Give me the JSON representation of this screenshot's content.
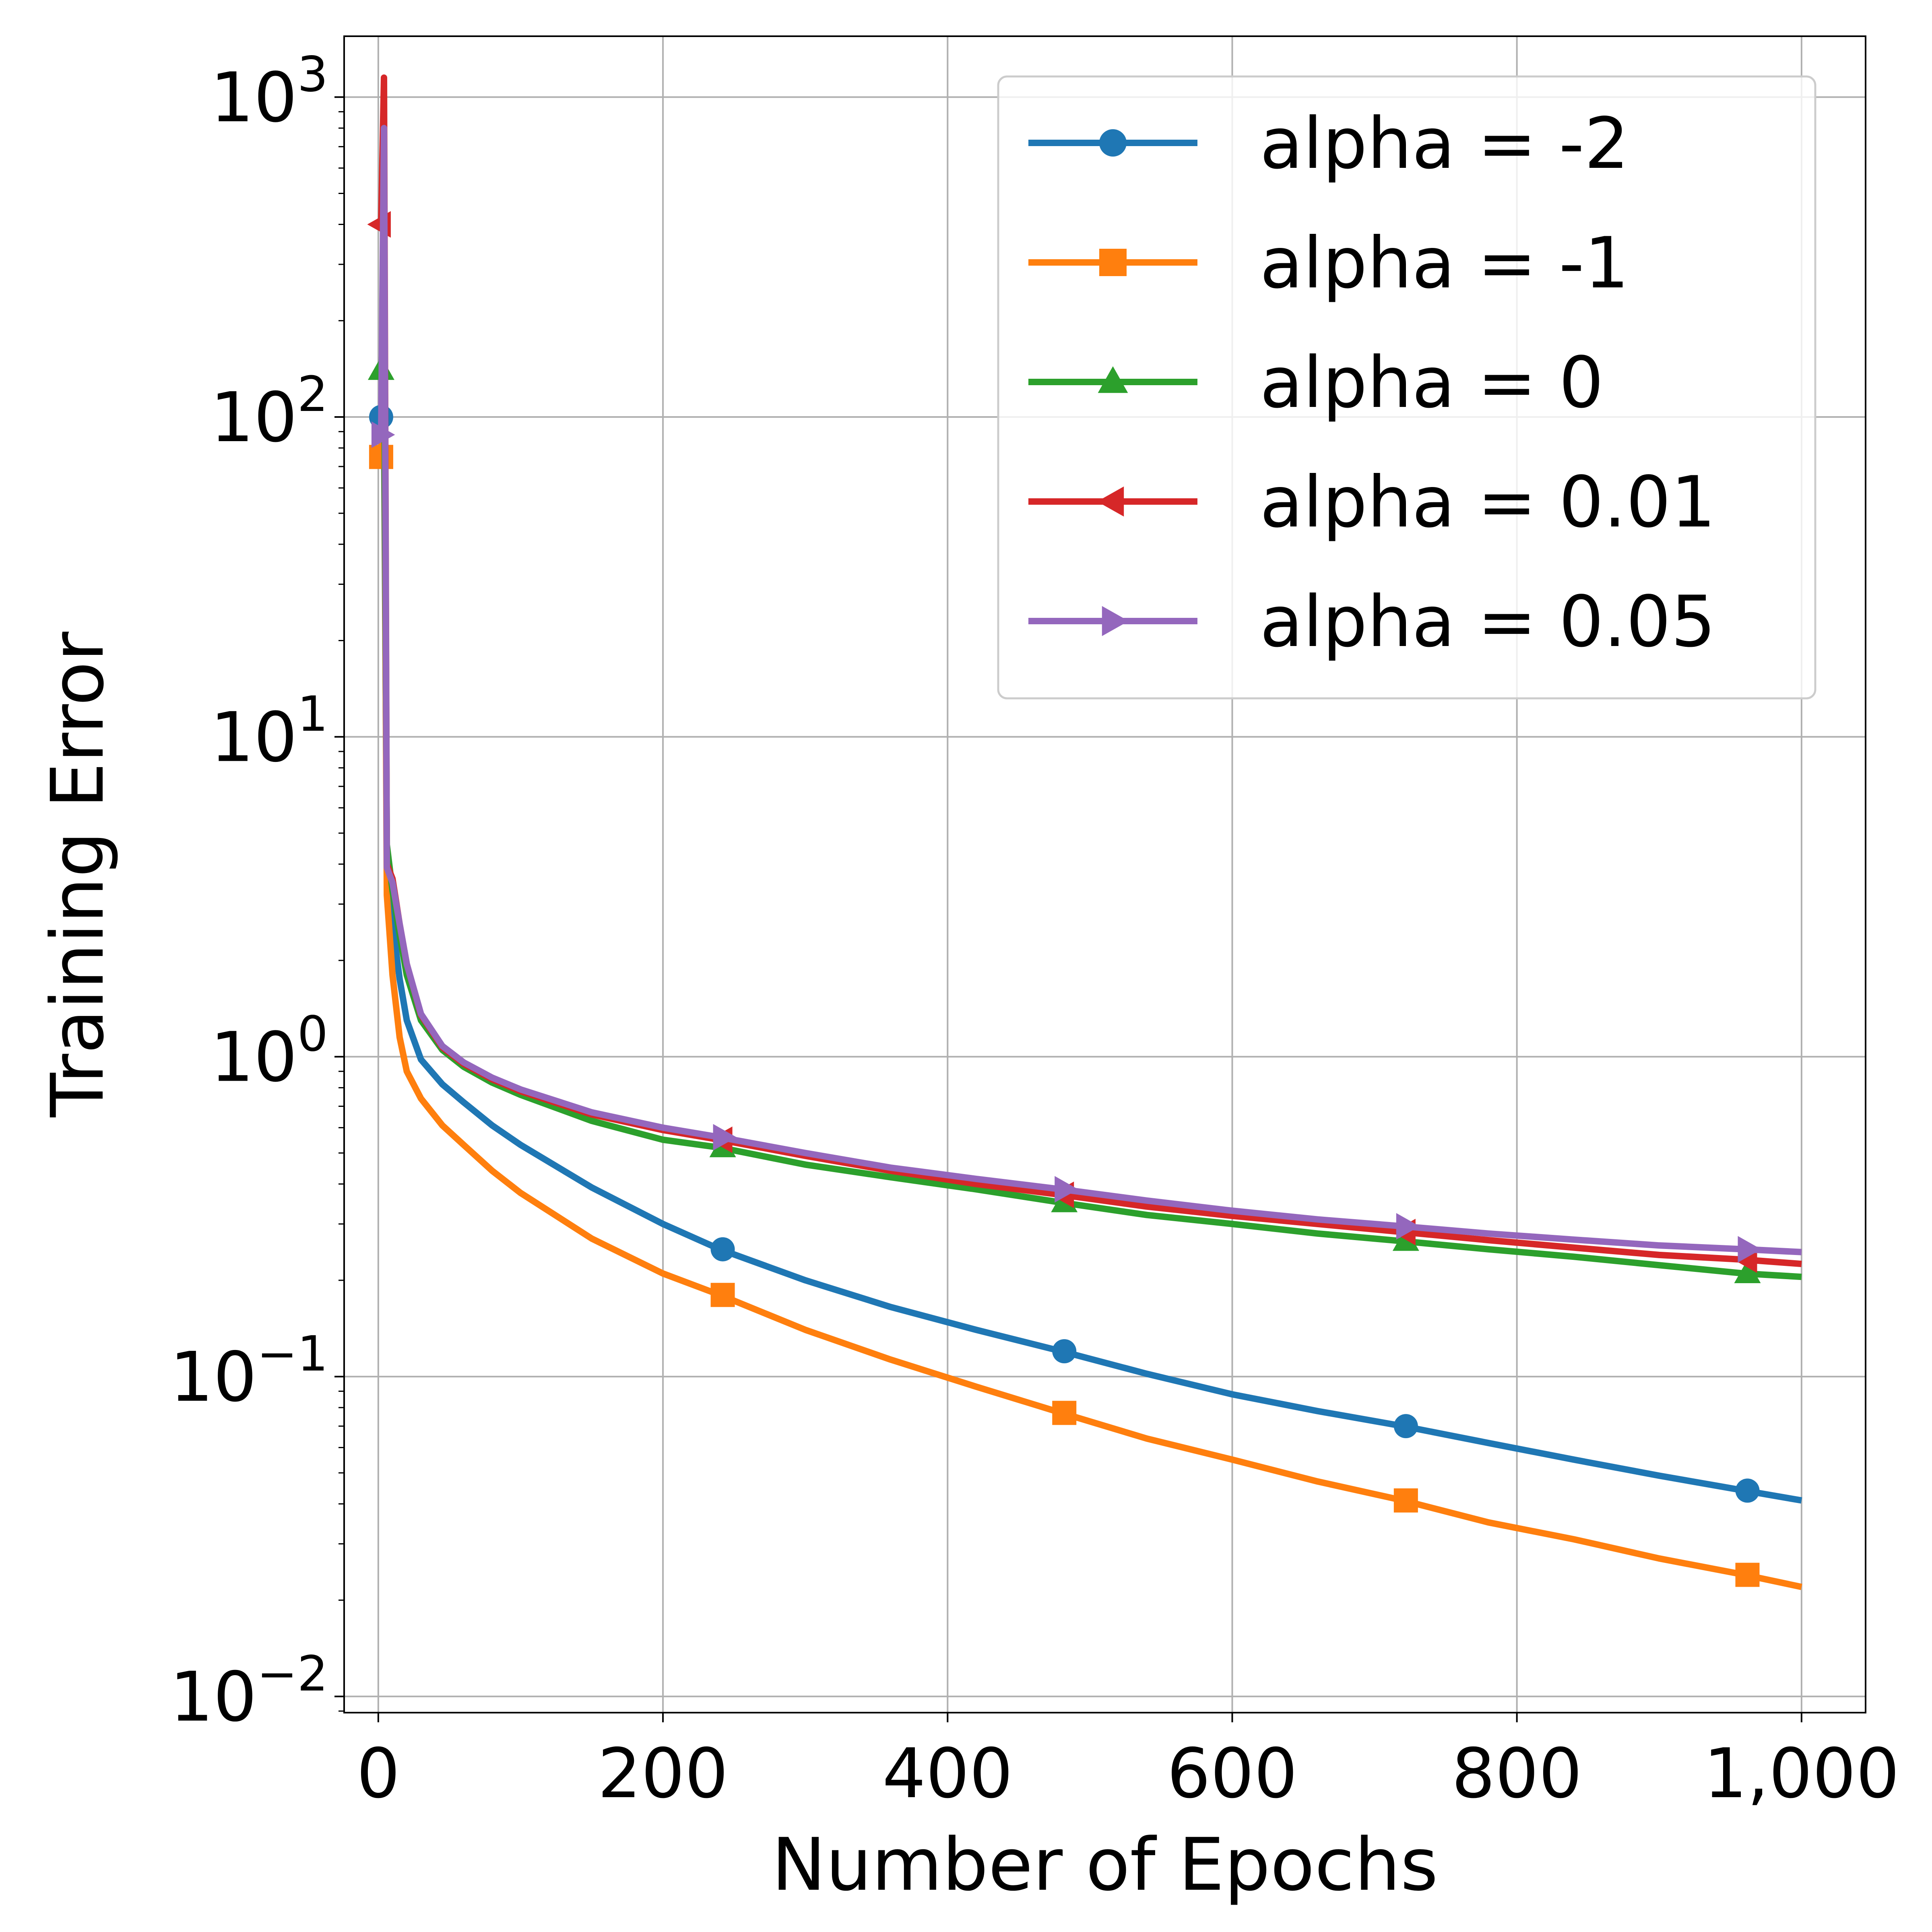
{
  "chart_data": {
    "type": "line",
    "title": "",
    "xlabel": "Number of Epochs",
    "ylabel": "Training Error",
    "yscale": "log",
    "xlim": [
      -24,
      1045
    ],
    "ylim": [
      0.0089,
      1550
    ],
    "xticks": [
      0,
      200,
      400,
      600,
      800,
      1000
    ],
    "xtick_labels": [
      "0",
      "200",
      "400",
      "600",
      "800",
      "1,000"
    ],
    "yticks": [
      0.01,
      0.1,
      1,
      10,
      100,
      1000
    ],
    "ytick_bases": [
      "10",
      "10",
      "10",
      "10",
      "10",
      "10"
    ],
    "ytick_exponents": [
      "−2",
      "−1",
      "0",
      "1",
      "2",
      "3"
    ],
    "grid": true,
    "legend_position": "top-right",
    "series": [
      {
        "name": "alpha = -2",
        "color": "#1f77b4",
        "marker": "circle",
        "x": [
          0,
          2,
          4,
          6,
          10,
          15,
          20,
          30,
          45,
          60,
          80,
          100,
          150,
          200,
          240,
          300,
          360,
          420,
          480,
          540,
          600,
          660,
          720,
          780,
          840,
          900,
          960,
          1000
        ],
        "y": [
          100,
          100,
          92,
          4.4,
          2.6,
          1.75,
          1.3,
          0.98,
          0.82,
          0.72,
          0.61,
          0.53,
          0.39,
          0.3,
          0.25,
          0.2,
          0.165,
          0.14,
          0.12,
          0.102,
          0.088,
          0.078,
          0.07,
          0.062,
          0.055,
          0.049,
          0.044,
          0.041
        ],
        "markers_x": [
          2,
          242,
          482,
          722,
          962
        ],
        "markers_y": [
          100,
          0.25,
          0.12,
          0.07,
          0.044
        ]
      },
      {
        "name": "alpha = -1",
        "color": "#ff7f0e",
        "marker": "square",
        "x": [
          0,
          2,
          4,
          6,
          10,
          15,
          20,
          30,
          45,
          60,
          80,
          100,
          150,
          200,
          240,
          300,
          360,
          420,
          480,
          540,
          600,
          660,
          720,
          780,
          840,
          900,
          960,
          1000
        ],
        "y": [
          75,
          75,
          150,
          3.2,
          1.8,
          1.15,
          0.9,
          0.74,
          0.61,
          0.53,
          0.44,
          0.375,
          0.27,
          0.21,
          0.18,
          0.14,
          0.113,
          0.093,
          0.077,
          0.064,
          0.055,
          0.047,
          0.041,
          0.035,
          0.031,
          0.027,
          0.024,
          0.022
        ],
        "markers_x": [
          2,
          242,
          482,
          722,
          962
        ],
        "markers_y": [
          75,
          0.18,
          0.077,
          0.041,
          0.024
        ]
      },
      {
        "name": "alpha = 0",
        "color": "#2ca02c",
        "marker": "triangle-up",
        "x": [
          0,
          2,
          4,
          6,
          10,
          15,
          20,
          30,
          45,
          60,
          80,
          100,
          150,
          200,
          240,
          300,
          360,
          420,
          480,
          540,
          600,
          660,
          720,
          780,
          840,
          900,
          960,
          1000
        ],
        "y": [
          140,
          140,
          200,
          4.6,
          3.3,
          2.4,
          1.8,
          1.3,
          1.05,
          0.93,
          0.83,
          0.76,
          0.63,
          0.55,
          0.52,
          0.46,
          0.42,
          0.385,
          0.35,
          0.32,
          0.3,
          0.28,
          0.265,
          0.25,
          0.237,
          0.223,
          0.21,
          0.205
        ],
        "markers_x": [
          2,
          242,
          482,
          722,
          962
        ],
        "markers_y": [
          140,
          0.52,
          0.35,
          0.265,
          0.21
        ]
      },
      {
        "name": "alpha = 0.01",
        "color": "#d62728",
        "marker": "triangle-left",
        "x": [
          0,
          2,
          4,
          6,
          10,
          15,
          20,
          30,
          45,
          60,
          80,
          100,
          150,
          200,
          240,
          300,
          360,
          420,
          480,
          540,
          600,
          660,
          720,
          780,
          840,
          900,
          960,
          1000
        ],
        "y": [
          400,
          400,
          1150,
          4.0,
          3.6,
          2.6,
          1.95,
          1.35,
          1.07,
          0.95,
          0.85,
          0.78,
          0.66,
          0.59,
          0.55,
          0.49,
          0.44,
          0.4,
          0.37,
          0.34,
          0.318,
          0.3,
          0.283,
          0.267,
          0.253,
          0.24,
          0.232,
          0.225
        ],
        "markers_x": [
          2,
          242,
          482,
          722,
          962
        ],
        "markers_y": [
          400,
          0.55,
          0.37,
          0.283,
          0.232
        ]
      },
      {
        "name": "alpha = 0.05",
        "color": "#9467bd",
        "marker": "triangle-right",
        "x": [
          0,
          2,
          4,
          6,
          10,
          15,
          20,
          30,
          45,
          60,
          80,
          100,
          150,
          200,
          240,
          300,
          360,
          420,
          480,
          540,
          600,
          660,
          720,
          780,
          840,
          900,
          960,
          1000
        ],
        "y": [
          88,
          88,
          800,
          3.9,
          3.5,
          2.6,
          1.95,
          1.36,
          1.08,
          0.96,
          0.86,
          0.79,
          0.67,
          0.6,
          0.56,
          0.5,
          0.45,
          0.415,
          0.385,
          0.355,
          0.33,
          0.31,
          0.295,
          0.28,
          0.268,
          0.257,
          0.25,
          0.245
        ],
        "markers_x": [
          2,
          242,
          482,
          722,
          962
        ],
        "markers_y": [
          88,
          0.56,
          0.385,
          0.295,
          0.25
        ]
      }
    ]
  }
}
